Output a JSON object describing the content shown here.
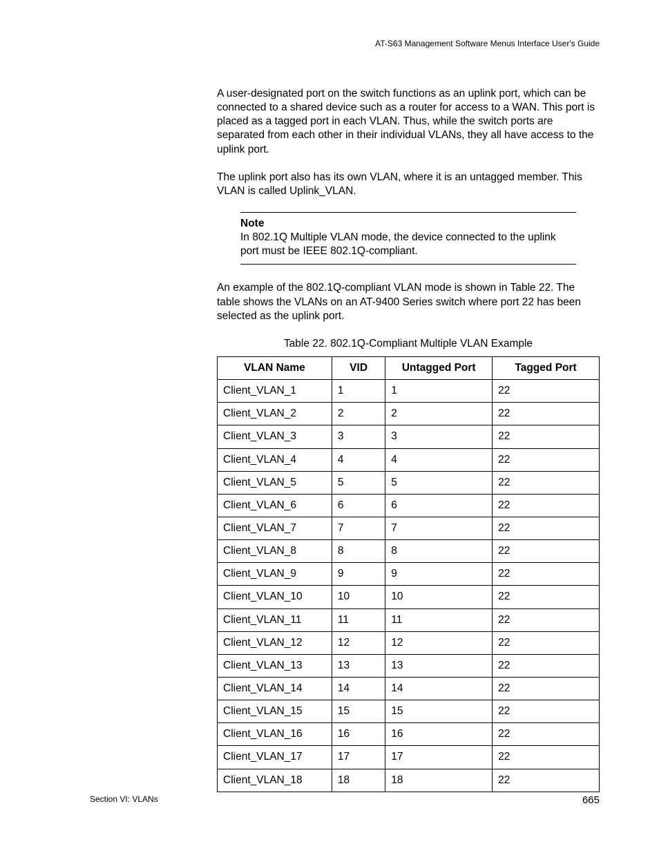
{
  "running_header": "AT-S63 Management Software Menus Interface User's Guide",
  "para1": "A user-designated port on the switch functions as an uplink port, which can be connected to a shared device such as a router for access to a WAN. This port is placed as a tagged port in each VLAN. Thus, while the switch ports are separated from each other in their individual VLANs, they all have access to the uplink port.",
  "para2": "The uplink port also has its own VLAN, where it is an untagged member. This VLAN is called Uplink_VLAN.",
  "note": {
    "title": "Note",
    "body": "In 802.1Q Multiple VLAN mode, the device connected to the uplink port must be IEEE 802.1Q-compliant."
  },
  "para3": "An example of the 802.1Q-compliant VLAN mode is shown in Table 22. The table shows the VLANs on an AT-9400 Series switch where port 22 has been selected as the uplink port.",
  "table": {
    "caption": "Table 22. 802.1Q-Compliant Multiple VLAN Example",
    "columns": [
      "VLAN Name",
      "VID",
      "Untagged Port",
      "Tagged Port"
    ],
    "rows": [
      [
        "Client_VLAN_1",
        "1",
        "1",
        "22"
      ],
      [
        "Client_VLAN_2",
        "2",
        "2",
        "22"
      ],
      [
        "Client_VLAN_3",
        "3",
        "3",
        "22"
      ],
      [
        "Client_VLAN_4",
        "4",
        "4",
        "22"
      ],
      [
        "Client_VLAN_5",
        "5",
        "5",
        "22"
      ],
      [
        "Client_VLAN_6",
        "6",
        "6",
        "22"
      ],
      [
        "Client_VLAN_7",
        "7",
        "7",
        "22"
      ],
      [
        "Client_VLAN_8",
        "8",
        "8",
        "22"
      ],
      [
        "Client_VLAN_9",
        "9",
        "9",
        "22"
      ],
      [
        "Client_VLAN_10",
        "10",
        "10",
        "22"
      ],
      [
        "Client_VLAN_11",
        "11",
        "11",
        "22"
      ],
      [
        "Client_VLAN_12",
        "12",
        "12",
        "22"
      ],
      [
        "Client_VLAN_13",
        "13",
        "13",
        "22"
      ],
      [
        "Client_VLAN_14",
        "14",
        "14",
        "22"
      ],
      [
        "Client_VLAN_15",
        "15",
        "15",
        "22"
      ],
      [
        "Client_VLAN_16",
        "16",
        "16",
        "22"
      ],
      [
        "Client_VLAN_17",
        "17",
        "17",
        "22"
      ],
      [
        "Client_VLAN_18",
        "18",
        "18",
        "22"
      ]
    ]
  },
  "footer": {
    "section": "Section VI: VLANs",
    "page": "665"
  }
}
